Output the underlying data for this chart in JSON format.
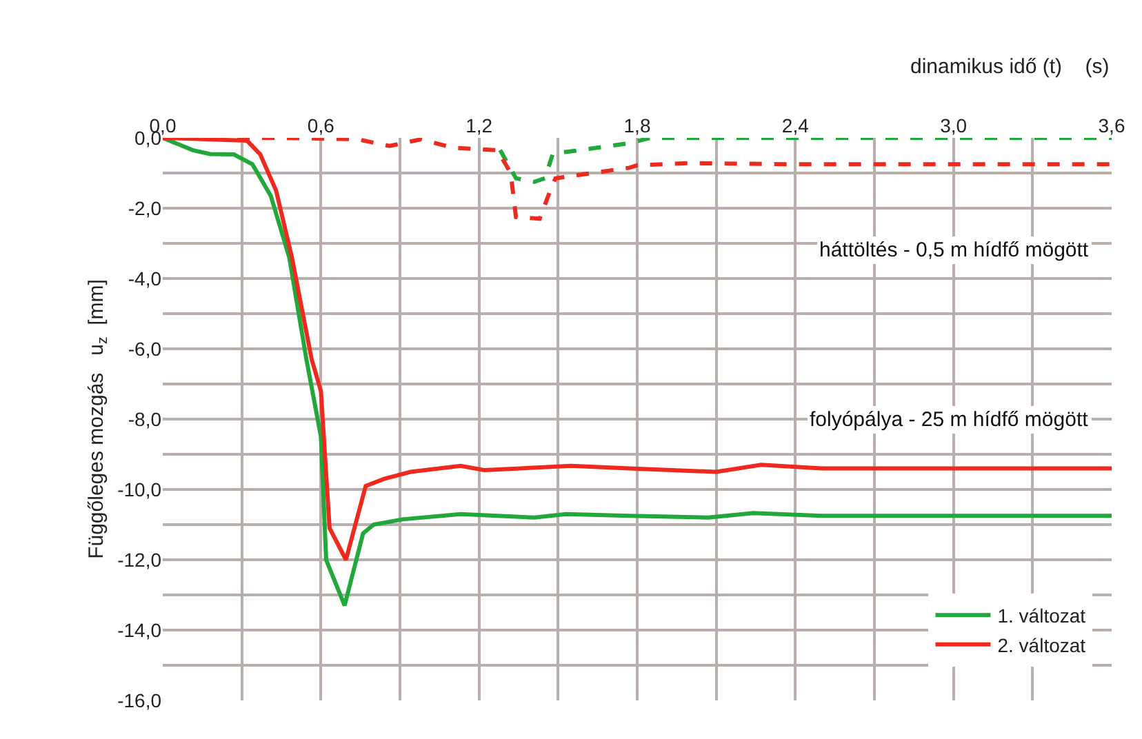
{
  "chart_data": {
    "type": "line",
    "xlabel": "dinamikus idő (t)    (s)",
    "ylabel": "Függőleges mozgás   u$_{z}$  [mm]",
    "annotations": [
      "háttöltés - 0,5 m hídfő mögött",
      "folyópálya - 25 m hídfő mögött"
    ],
    "series": [
      {
        "name": "1. változat",
        "color": "#22a83a",
        "line_style": "solid",
        "x": [
          0,
          0.114,
          0.18,
          0.27,
          0.34,
          0.41,
          0.48,
          0.545,
          0.6,
          0.62,
          0.69,
          0.76,
          0.8,
          0.91,
          1.13,
          1.41,
          1.53,
          1.77,
          2.07,
          2.24,
          2.5,
          3.0,
          3.6
        ],
        "values": [
          0,
          -0.35,
          -0.46,
          -0.47,
          -0.75,
          -1.65,
          -3.4,
          -6.3,
          -8.5,
          -12.0,
          -13.3,
          -11.25,
          -11.0,
          -10.85,
          -10.7,
          -10.8,
          -10.7,
          -10.75,
          -10.8,
          -10.67,
          -10.75,
          -10.75,
          -10.75
        ]
      },
      {
        "name": "2. változat",
        "color": "#ee2a1e",
        "line_style": "solid",
        "x": [
          0,
          0.32,
          0.37,
          0.43,
          0.49,
          0.565,
          0.6,
          0.633,
          0.695,
          0.77,
          0.84,
          0.94,
          1.13,
          1.22,
          1.55,
          1.77,
          2.1,
          2.27,
          2.5,
          3.0,
          3.6
        ],
        "values": [
          0,
          -0.08,
          -0.47,
          -1.5,
          -3.4,
          -6.3,
          -7.2,
          -11.1,
          -12.0,
          -9.9,
          -9.7,
          -9.5,
          -9.33,
          -9.45,
          -9.33,
          -9.4,
          -9.5,
          -9.3,
          -9.4,
          -9.4,
          -9.4
        ]
      },
      {
        "color": "#22a83a",
        "line_style": "dashed",
        "x": [
          0,
          0.45,
          0.74,
          0.86,
          0.98,
          1.1,
          1.28,
          1.34,
          1.41,
          1.45,
          1.48,
          1.63,
          1.77,
          1.85,
          2.4,
          3.0,
          3.6
        ],
        "values": [
          0,
          0,
          null,
          null,
          null,
          null,
          -0.35,
          -1.15,
          -1.25,
          -1.15,
          -0.45,
          -0.3,
          -0.15,
          0,
          0,
          0,
          0
        ]
      },
      {
        "color": "#ee2a1e",
        "line_style": "dashed",
        "x": [
          0,
          0.45,
          0.74,
          0.86,
          0.98,
          1.1,
          1.27,
          1.32,
          1.34,
          1.43,
          1.47,
          1.49,
          1.63,
          1.77,
          1.8,
          2.0,
          2.4,
          3.0,
          3.6
        ],
        "values": [
          0,
          0,
          -0.04,
          -0.23,
          -0.04,
          -0.28,
          -0.35,
          -1.0,
          -2.25,
          -2.3,
          -1.5,
          -1.15,
          -1.0,
          -0.85,
          -0.78,
          -0.72,
          -0.75,
          -0.75,
          -0.75
        ]
      }
    ],
    "xlim": [
      0,
      3.6
    ],
    "xticks": [
      {
        "value": 0,
        "label": "0,0"
      },
      {
        "value": 0.3,
        "label": null
      },
      {
        "value": 0.6,
        "label": "0,6"
      },
      {
        "value": 0.9,
        "label": null
      },
      {
        "value": 1.2,
        "label": "1,2"
      },
      {
        "value": 1.5,
        "label": null
      },
      {
        "value": 1.8,
        "label": "1,8"
      },
      {
        "value": 2.1,
        "label": null
      },
      {
        "value": 2.4,
        "label": "2,4"
      },
      {
        "value": 2.7,
        "label": null
      },
      {
        "value": 3.0,
        "label": "3,0"
      },
      {
        "value": 3.3,
        "label": null
      },
      {
        "value": 3.6,
        "label": "3,6"
      }
    ],
    "ylim": [
      -16,
      0
    ],
    "yticks": [
      {
        "value": 0,
        "label": "0,0"
      },
      {
        "value": -1,
        "label": null
      },
      {
        "value": -2,
        "label": "-2,0"
      },
      {
        "value": -3,
        "label": null
      },
      {
        "value": -4,
        "label": "-4,0"
      },
      {
        "value": -5,
        "label": null
      },
      {
        "value": -6,
        "label": "-6,0"
      },
      {
        "value": -7,
        "label": null
      },
      {
        "value": -8,
        "label": "-8,0"
      },
      {
        "value": -9,
        "label": null
      },
      {
        "value": -10,
        "label": "-10,0"
      },
      {
        "value": -11,
        "label": null
      },
      {
        "value": -12,
        "label": "-12,0"
      },
      {
        "value": -13,
        "label": null
      },
      {
        "value": -14,
        "label": "-14,0"
      },
      {
        "value": -15,
        "label": null
      },
      {
        "value": -16,
        "label": "-16,0"
      }
    ],
    "grid": true,
    "legend": "bottom right",
    "marker": "none"
  }
}
